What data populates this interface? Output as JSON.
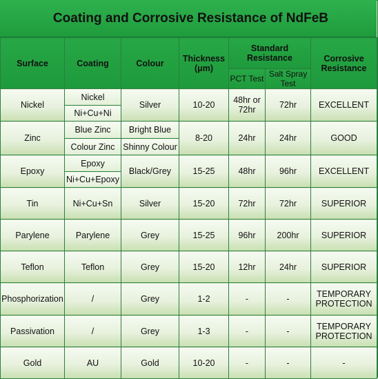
{
  "title": "Coating and Corrosive Resistance of NdFeB",
  "headers": {
    "surface": "Surface",
    "coating": "Coating",
    "colour": "Colour",
    "thickness": "Thickness (μm)",
    "standard": "Standard Resistance",
    "pct": "PCT Test",
    "salt": "Salt Spray Test",
    "corrosive": "Corrosive Resistance"
  },
  "rows": [
    {
      "surface": "Nickel",
      "coatings": [
        "Nickel",
        "Ni+Cu+Ni"
      ],
      "colours": [
        "Silver"
      ],
      "thickness": "10-20",
      "pct": "48hr or 72hr",
      "salt": "72hr",
      "resistance": "EXCELLENT"
    },
    {
      "surface": "Zinc",
      "coatings": [
        "Blue Zinc",
        "Colour Zinc"
      ],
      "colours": [
        "Bright Blue",
        "Shinny Colour"
      ],
      "thickness": "8-20",
      "pct": "24hr",
      "salt": "24hr",
      "resistance": "GOOD"
    },
    {
      "surface": "Epoxy",
      "coatings": [
        "Epoxy",
        "Ni+Cu+Epoxy"
      ],
      "colours": [
        "Black/Grey"
      ],
      "thickness": "15-25",
      "pct": "48hr",
      "salt": "96hr",
      "resistance": "EXCELLENT"
    },
    {
      "surface": "Tin",
      "coatings": [
        "Ni+Cu+Sn"
      ],
      "colours": [
        "Silver"
      ],
      "thickness": "15-20",
      "pct": "72hr",
      "salt": "72hr",
      "resistance": "SUPERIOR"
    },
    {
      "surface": "Parylene",
      "coatings": [
        "Parylene"
      ],
      "colours": [
        "Grey"
      ],
      "thickness": "15-25",
      "pct": "96hr",
      "salt": "200hr",
      "resistance": "SUPERIOR"
    },
    {
      "surface": "Teflon",
      "coatings": [
        "Teflon"
      ],
      "colours": [
        "Grey"
      ],
      "thickness": "15-20",
      "pct": "12hr",
      "salt": "24hr",
      "resistance": "SUPERIOR"
    },
    {
      "surface": "Phosphorization",
      "coatings": [
        "/"
      ],
      "colours": [
        "Grey"
      ],
      "thickness": "1-2",
      "pct": "-",
      "salt": "-",
      "resistance": "TEMPORARY PROTECTION"
    },
    {
      "surface": "Passivation",
      "coatings": [
        "/"
      ],
      "colours": [
        "Grey"
      ],
      "thickness": "1-3",
      "pct": "-",
      "salt": "-",
      "resistance": "TEMPORARY PROTECTION"
    },
    {
      "surface": "Gold",
      "coatings": [
        "AU"
      ],
      "colours": [
        "Gold"
      ],
      "thickness": "10-20",
      "pct": "-",
      "salt": "-",
      "resistance": "-"
    }
  ]
}
